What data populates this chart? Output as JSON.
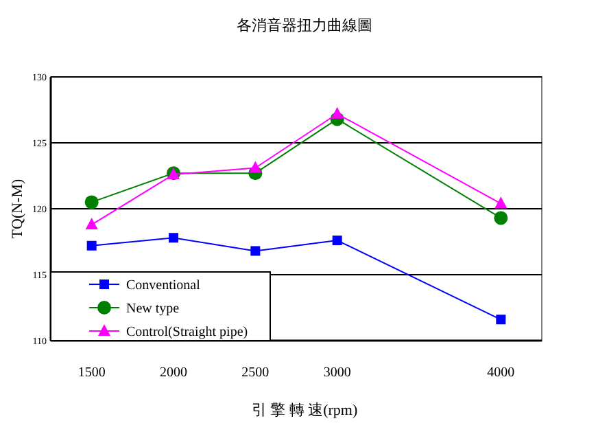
{
  "chart_data": {
    "type": "line",
    "title": "各消音器扭力曲線圖",
    "xlabel": "引 擎 轉 速(rpm)",
    "ylabel": "TQ(N-M)",
    "x": [
      1500,
      2000,
      2500,
      3000,
      4000
    ],
    "xlim": [
      1250,
      4250
    ],
    "xticks": [
      1500,
      2000,
      2500,
      3000,
      4000
    ],
    "ylim": [
      110,
      130
    ],
    "yticks": [
      110,
      115,
      120,
      125,
      130
    ],
    "grid": "y",
    "legend": "bottom left",
    "line_style": "solid",
    "series": [
      {
        "name": "Conventional",
        "color": "#0000ff",
        "marker": "square",
        "values": [
          117.2,
          117.8,
          116.8,
          117.6,
          111.6
        ]
      },
      {
        "name": "New type",
        "color": "#008000",
        "marker": "circle",
        "values": [
          120.5,
          122.7,
          122.7,
          126.8,
          119.3
        ]
      },
      {
        "name": "Control(Straight pipe)",
        "color": "#ff00ff",
        "marker": "triangle",
        "values": [
          118.8,
          122.6,
          123.1,
          127.2,
          120.4
        ]
      }
    ]
  }
}
